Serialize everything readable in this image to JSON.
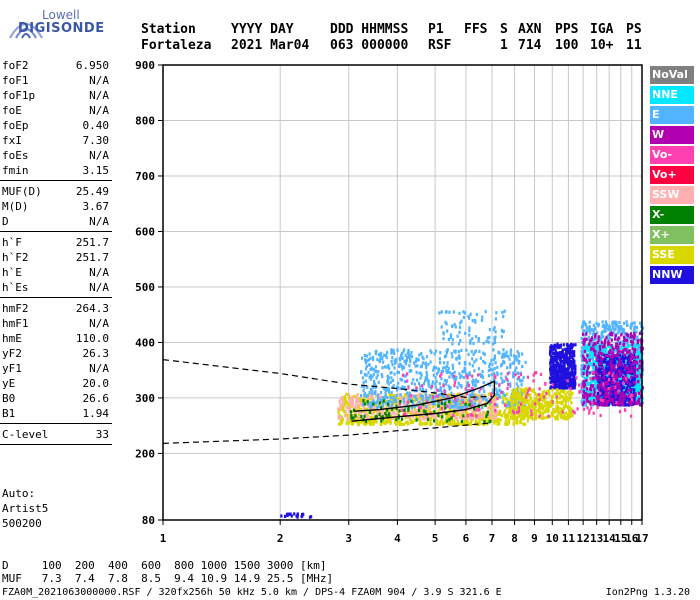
{
  "logo": {
    "brand_top": "Lowell",
    "brand_main": "DIGISONDE"
  },
  "header": {
    "col_labels": [
      "Station",
      "YYYY DAY",
      "DDD HHMMSS",
      "P1",
      "FFS",
      "S",
      "AXN",
      "PPS",
      "IGA",
      "PS"
    ],
    "col_values": [
      "Fortaleza",
      "2021 Mar04",
      "063 000000",
      "RSF",
      "",
      "1",
      "714",
      "100",
      "10+",
      "11"
    ]
  },
  "params": [
    {
      "k": "foF2",
      "v": "6.950"
    },
    {
      "k": "foF1",
      "v": "N/A"
    },
    {
      "k": "foF1p",
      "v": "N/A"
    },
    {
      "k": "foE",
      "v": "N/A"
    },
    {
      "k": "foEp",
      "v": "0.40"
    },
    {
      "k": "fxI",
      "v": "7.30"
    },
    {
      "k": "foEs",
      "v": "N/A"
    },
    {
      "k": "fmin",
      "v": "3.15"
    },
    {
      "sep": true
    },
    {
      "k": "MUF(D)",
      "v": "25.49"
    },
    {
      "k": "M(D)",
      "v": "3.67"
    },
    {
      "k": "D",
      "v": "N/A"
    },
    {
      "sep": true
    },
    {
      "k": "h`F",
      "v": "251.7"
    },
    {
      "k": "h`F2",
      "v": "251.7"
    },
    {
      "k": "h`E",
      "v": "N/A"
    },
    {
      "k": "h`Es",
      "v": "N/A"
    },
    {
      "sep": true
    },
    {
      "k": "hmF2",
      "v": "264.3"
    },
    {
      "k": "hmF1",
      "v": "N/A"
    },
    {
      "k": "hmE",
      "v": "110.0"
    },
    {
      "k": "yF2",
      "v": "26.3"
    },
    {
      "k": "yF1",
      "v": "N/A"
    },
    {
      "k": "yE",
      "v": "20.0"
    },
    {
      "k": "B0",
      "v": "26.6"
    },
    {
      "k": "B1",
      "v": "1.94"
    },
    {
      "sep": true
    },
    {
      "k": "C-level",
      "v": "33"
    },
    {
      "sep": true
    }
  ],
  "auto": {
    "line1": "Auto:",
    "line2": "Artist5",
    "line3": "500200"
  },
  "legend": [
    {
      "label": "NoVal",
      "bg": "#808080",
      "fg": "#ffffff"
    },
    {
      "label": "NNE",
      "bg": "#00e8ff",
      "fg": "#ffffff"
    },
    {
      "label": "E",
      "bg": "#50b4ff",
      "fg": "#ffffff"
    },
    {
      "label": "W",
      "bg": "#b000b0",
      "fg": "#ffffff"
    },
    {
      "label": "Vo-",
      "bg": "#ff40b0",
      "fg": "#ffffff"
    },
    {
      "label": "Vo+",
      "bg": "#ff0040",
      "fg": "#ffffff"
    },
    {
      "label": "SSW",
      "bg": "#ffb0b0",
      "fg": "#ffffff"
    },
    {
      "label": "X-",
      "bg": "#008000",
      "fg": "#ffffff"
    },
    {
      "label": "X+",
      "bg": "#80c060",
      "fg": "#ffffff"
    },
    {
      "label": "SSE",
      "bg": "#d8d800",
      "fg": "#ffffff"
    },
    {
      "label": "NNW",
      "bg": "#2010e0",
      "fg": "#ffffff"
    }
  ],
  "bottom": {
    "d_row": "D     100  200  400  600  800 1000 1500 3000 [km]",
    "muf_row": "MUF   7.3  7.4  7.8  8.5  9.4 10.9 14.9 25.5 [MHz]",
    "footer_left": "FZA0M_2021063000000.RSF / 320fx256h 50 kHz 5.0 km / DPS-4 FZA0M 904 / 3.9 S 321.6 E",
    "footer_right": "Ion2Png 1.3.20"
  },
  "chart_data": {
    "type": "scatter",
    "title": "",
    "xlabel": "",
    "ylabel": "",
    "xlim": [
      1,
      17
    ],
    "ylim": [
      80,
      900
    ],
    "x_ticks": [
      1,
      2,
      3,
      4,
      5,
      6,
      7,
      8,
      9,
      10,
      11,
      12,
      13,
      14,
      15,
      16,
      17
    ],
    "y_ticks": [
      80,
      200,
      300,
      400,
      500,
      600,
      700,
      800,
      900
    ],
    "grid": true,
    "x_scale": "log",
    "echo_regions": [
      {
        "name": "SSE",
        "color": "#d8d800",
        "x": [
          2.8,
          8.6
        ],
        "y": [
          255,
          310
        ],
        "density": 900
      },
      {
        "name": "SSW",
        "color": "#ffb0b0",
        "x": [
          2.8,
          7.2
        ],
        "y": [
          265,
          310
        ],
        "density": 350
      },
      {
        "name": "E",
        "color": "#50b4ff",
        "x": [
          3.2,
          8.5
        ],
        "y": [
          285,
          390
        ],
        "density": 700
      },
      {
        "name": "E",
        "color": "#50b4ff",
        "x": [
          11.8,
          17.0
        ],
        "y": [
          290,
          440
        ],
        "density": 900
      },
      {
        "name": "NNE",
        "color": "#00e8ff",
        "x": [
          12.0,
          17.0
        ],
        "y": [
          300,
          400
        ],
        "density": 500
      },
      {
        "name": "NNW",
        "color": "#2010e0",
        "x": [
          9.8,
          11.4
        ],
        "y": [
          320,
          400
        ],
        "density": 500
      },
      {
        "name": "NNW",
        "color": "#2010e0",
        "x": [
          13.0,
          16.2
        ],
        "y": [
          290,
          380
        ],
        "density": 500
      },
      {
        "name": "W",
        "color": "#b000b0",
        "x": [
          11.9,
          17.0
        ],
        "y": [
          290,
          420
        ],
        "density": 400
      },
      {
        "name": "SSE",
        "color": "#d8d800",
        "x": [
          7.8,
          11.2
        ],
        "y": [
          265,
          320
        ],
        "density": 400
      },
      {
        "name": "Vo-",
        "color": "#ff40b0",
        "x": [
          4.0,
          16.0
        ],
        "y": [
          270,
          350
        ],
        "density": 150
      },
      {
        "name": "X-",
        "color": "#008000",
        "x": [
          3.0,
          7.0
        ],
        "y": [
          260,
          300
        ],
        "density": 80
      },
      {
        "name": "E",
        "color": "#50b4ff",
        "x": [
          5.0,
          7.5
        ],
        "y": [
          400,
          460
        ],
        "density": 80
      },
      {
        "name": "NNW",
        "color": "#2010e0",
        "x": [
          2.0,
          2.4
        ],
        "y": [
          88,
          94
        ],
        "density": 20
      }
    ],
    "profile": {
      "dashed": [
        [
          1.0,
          369
        ],
        [
          2.0,
          344
        ],
        [
          3.0,
          325
        ],
        [
          4.0,
          317
        ],
        [
          5.0,
          309
        ],
        [
          6.0,
          301
        ],
        [
          7.0,
          303
        ]
      ],
      "dashed_lower": [
        [
          1.0,
          218
        ],
        [
          2.0,
          226
        ],
        [
          3.0,
          233
        ],
        [
          4.0,
          241
        ],
        [
          5.0,
          246
        ],
        [
          6.0,
          251
        ],
        [
          7.0,
          255
        ]
      ],
      "solid": [
        [
          3.05,
          258
        ],
        [
          3.5,
          262
        ],
        [
          4.0,
          266
        ],
        [
          5.0,
          272
        ],
        [
          6.0,
          279
        ],
        [
          6.8,
          290
        ],
        [
          7.1,
          305
        ],
        [
          7.1,
          330
        ],
        [
          6.5,
          318
        ],
        [
          5.5,
          300
        ],
        [
          4.5,
          287
        ],
        [
          3.6,
          279
        ],
        [
          3.1,
          276
        ]
      ]
    }
  }
}
